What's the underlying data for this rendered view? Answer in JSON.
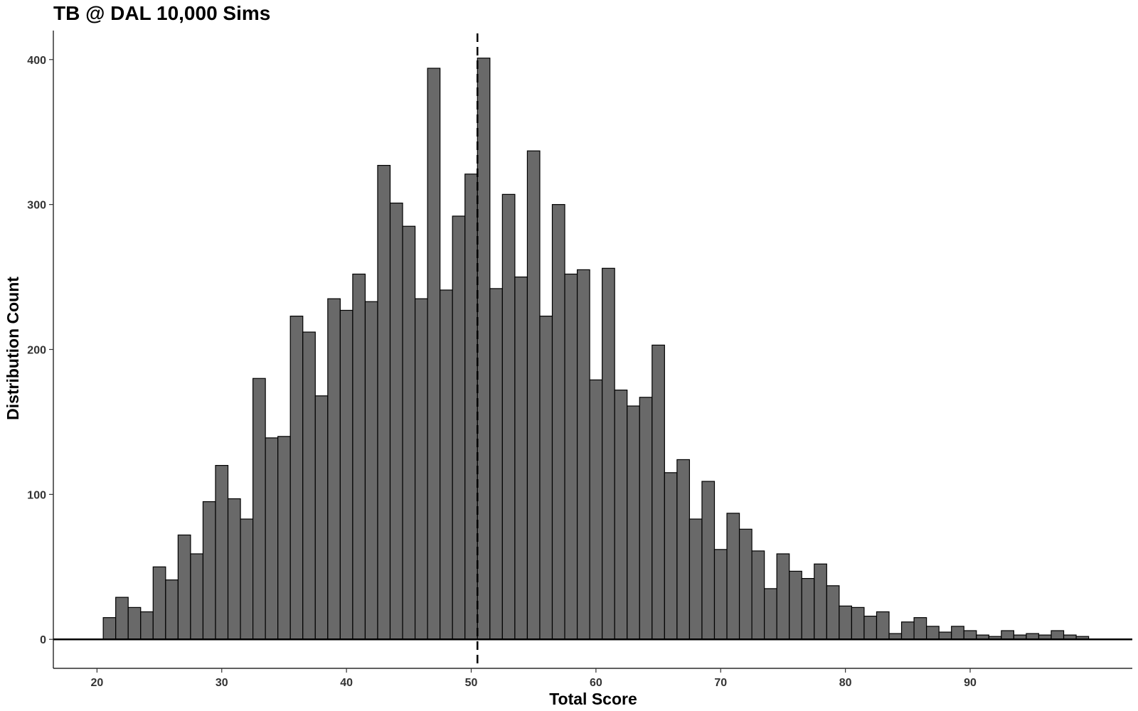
{
  "chart_data": {
    "type": "bar",
    "title": "TB @ DAL 10,000 Sims",
    "xlabel": "Total Score",
    "ylabel": "Distribution Count",
    "x_start": 21,
    "bin_width": 1,
    "values": [
      15,
      29,
      22,
      19,
      50,
      41,
      72,
      59,
      95,
      120,
      97,
      83,
      180,
      139,
      140,
      223,
      212,
      168,
      235,
      227,
      252,
      233,
      327,
      301,
      285,
      235,
      394,
      241,
      292,
      321,
      401,
      242,
      307,
      250,
      337,
      223,
      300,
      252,
      255,
      179,
      256,
      172,
      161,
      167,
      203,
      115,
      124,
      83,
      109,
      62,
      87,
      76,
      61,
      35,
      59,
      47,
      42,
      52,
      37,
      23,
      22,
      16,
      19,
      4,
      12,
      15,
      9,
      5,
      9,
      6,
      3,
      2,
      6,
      3,
      4,
      3,
      6,
      3,
      2
    ],
    "xlim": [
      16.5,
      103
    ],
    "ylim": [
      -20,
      420
    ],
    "x_ticks": [
      20,
      30,
      40,
      50,
      60,
      70,
      80,
      90
    ],
    "y_ticks": [
      0,
      100,
      200,
      300,
      400
    ],
    "mean_line_x": 50.5,
    "grid": false,
    "bar_color": "#696969",
    "bar_outline": "#000000"
  }
}
